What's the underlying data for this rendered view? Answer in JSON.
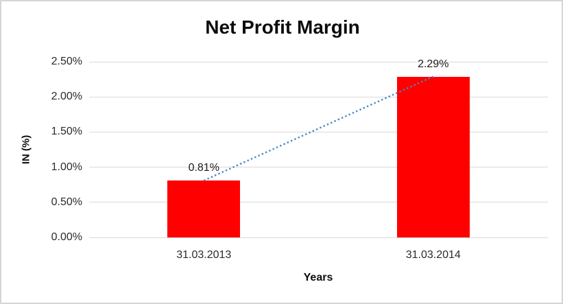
{
  "chart_data": {
    "type": "bar",
    "title": "Net Profit Margin",
    "xlabel": "Years",
    "ylabel": "IN (%)",
    "categories": [
      "31.03.2013",
      "31.03.2014"
    ],
    "values": [
      0.81,
      2.29
    ],
    "data_labels": [
      "0.81%",
      "2.29%"
    ],
    "y_ticks": [
      "0.00%",
      "0.50%",
      "1.00%",
      "1.50%",
      "2.00%",
      "2.50%"
    ],
    "ylim": [
      0,
      2.5
    ],
    "grid": "horizontal",
    "legend_position": "none",
    "bar_color": "#FF0000",
    "trendline": {
      "style": "dotted",
      "color": "#4A86C8",
      "connects": "tops of the two bars"
    },
    "gridline_color": "#D9D9D9",
    "frame_border_color": "#D5D5D5"
  }
}
